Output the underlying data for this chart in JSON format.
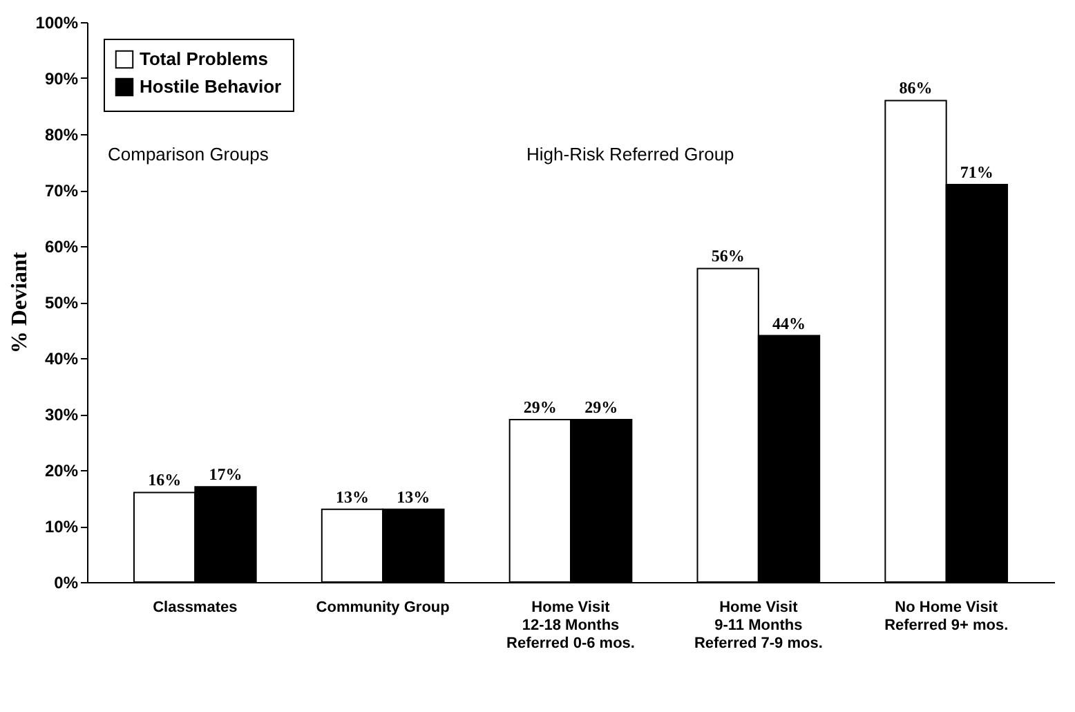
{
  "chart_data": {
    "type": "bar",
    "ylabel": "% Deviant",
    "categories": [
      "Classmates",
      "Community Group",
      "Home Visit\n12-18 Months\nReferred 0-6 mos.",
      "Home Visit\n9-11 Months\nReferred 7-9 mos.",
      "No Home Visit\nReferred 9+ mos."
    ],
    "series": [
      {
        "name": "Total Problems",
        "color": "#ffffff",
        "values": [
          16,
          13,
          29,
          56,
          86
        ],
        "value_labels": [
          "16%",
          "13%",
          "29%",
          "56%",
          "86%"
        ]
      },
      {
        "name": "Hostile Behavior",
        "color": "#000000",
        "values": [
          17,
          13,
          29,
          44,
          71
        ],
        "value_labels": [
          "17%",
          "13%",
          "29%",
          "44%",
          "71%"
        ]
      }
    ],
    "ylim": [
      0,
      100
    ],
    "yticks": [
      {
        "value": 0,
        "label": "0%"
      },
      {
        "value": 10,
        "label": "10%"
      },
      {
        "value": 20,
        "label": "20%"
      },
      {
        "value": 30,
        "label": "30%"
      },
      {
        "value": 40,
        "label": "40%"
      },
      {
        "value": 50,
        "label": "50%"
      },
      {
        "value": 60,
        "label": "60%"
      },
      {
        "value": 70,
        "label": "70%"
      },
      {
        "value": 80,
        "label": "80%"
      },
      {
        "value": 90,
        "label": "90%"
      },
      {
        "value": 100,
        "label": "100%"
      }
    ],
    "annotations": [
      "Comparison Groups",
      "High-Risk Referred Group"
    ],
    "legend": "top left",
    "grid": false
  }
}
